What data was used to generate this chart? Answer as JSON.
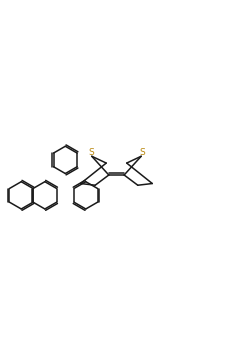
{
  "bg_color": "#ffffff",
  "bond_color": "#1a1a1a",
  "sulfur_color": "#b8860b",
  "oxygen_color": "#cc0000",
  "lw": 1.1,
  "dbo": 0.018,
  "figsize": [
    2.5,
    3.5
  ],
  "dpi": 100,
  "xlim": [
    -1.35,
    1.55
  ],
  "ylim": [
    -0.85,
    0.85
  ]
}
